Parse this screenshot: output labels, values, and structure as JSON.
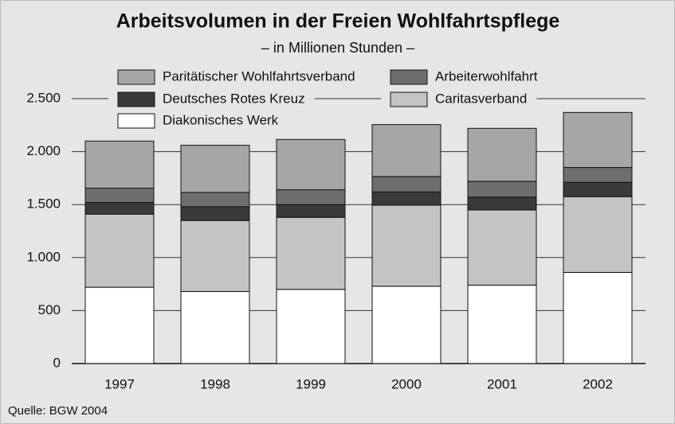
{
  "chart_data": {
    "type": "bar",
    "stacked": true,
    "title": "Arbeitsvolumen in der Freien Wohlfahrtspflege",
    "subtitle": "– in Millionen Stunden –",
    "source": "Quelle: BGW 2004",
    "categories": [
      "1997",
      "1998",
      "1999",
      "2000",
      "2001",
      "2002"
    ],
    "series": [
      {
        "name": "Diakonisches Werk",
        "color": "#ffffff",
        "values": [
          720,
          680,
          700,
          730,
          740,
          860
        ]
      },
      {
        "name": "Caritasverband",
        "color": "#c4c4c4",
        "values": [
          690,
          670,
          680,
          765,
          710,
          715
        ]
      },
      {
        "name": "Deutsches Rotes Kreuz",
        "color": "#3a3a3a",
        "values": [
          110,
          130,
          120,
          125,
          120,
          135
        ]
      },
      {
        "name": "Arbeiterwohlfahrt",
        "color": "#6e6e6e",
        "values": [
          135,
          135,
          140,
          145,
          150,
          140
        ]
      },
      {
        "name": "Paritätischer Wohlfahrtsverband",
        "color": "#a6a6a6",
        "values": [
          445,
          445,
          475,
          490,
          500,
          520
        ]
      }
    ],
    "ylim": [
      0,
      2500
    ],
    "yticks": [
      0,
      500,
      {
        "value": 1000,
        "label": "1.000"
      },
      {
        "value": 1500,
        "label": "1.500"
      },
      {
        "value": 2000,
        "label": "2.000"
      },
      {
        "value": 2500,
        "label": "2.500"
      }
    ],
    "grid": true
  }
}
